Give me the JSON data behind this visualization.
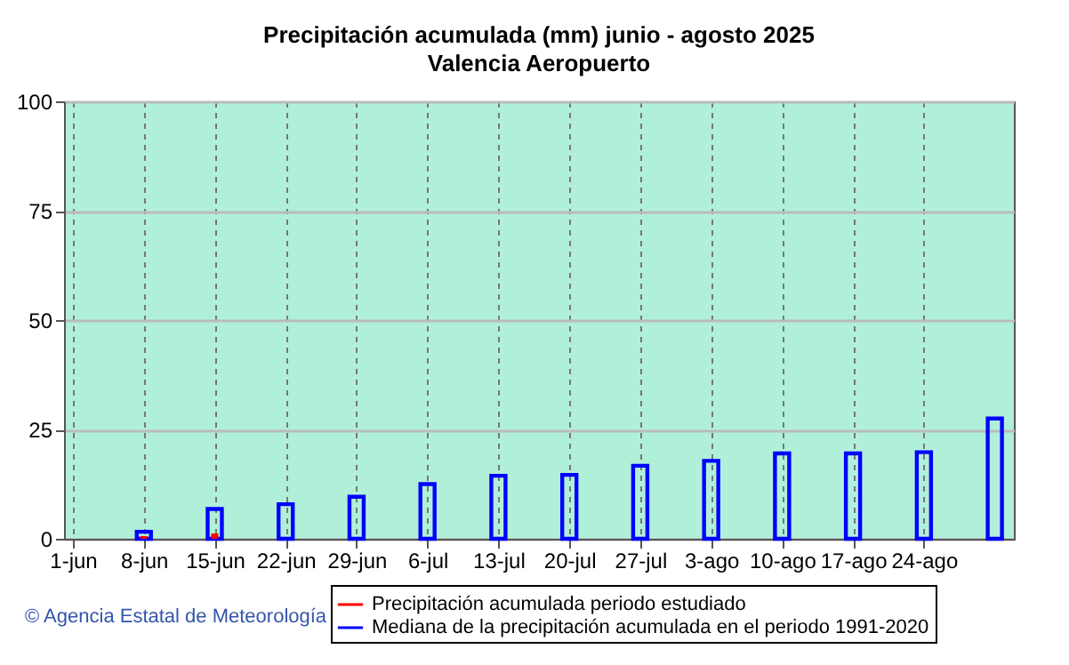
{
  "chart_data": {
    "type": "bar",
    "title": "Precipitación acumulada (mm) junio - agosto 2025",
    "subtitle": "Valencia Aeropuerto",
    "x": [
      "2025-06-08",
      "2025-06-15",
      "2025-06-22",
      "2025-06-29",
      "2025-07-06",
      "2025-07-13",
      "2025-07-20",
      "2025-07-27",
      "2025-08-03",
      "2025-08-10",
      "2025-08-17",
      "2025-08-24",
      "2025-08-31"
    ],
    "series": [
      {
        "name": "Precipitación acumulada periodo estudiado",
        "color": "#ff0000",
        "values": [
          0.6,
          1.2,
          null,
          null,
          null,
          null,
          null,
          null,
          null,
          null,
          null,
          null,
          null
        ]
      },
      {
        "name": "Mediana de la precipitación acumulada en el periodo 1991-2020",
        "color": "#0000ff",
        "values": [
          1.6,
          6.8,
          7.9,
          9.6,
          12.5,
          14.4,
          14.6,
          16.7,
          17.8,
          19.5,
          19.5,
          19.8,
          27.5
        ]
      }
    ],
    "xlim": [
      "2025-06-01",
      "2025-09-01"
    ],
    "xticks": [
      {
        "value": "2025-06-01",
        "label": "1-jun"
      },
      {
        "value": "2025-06-08",
        "label": "8-jun"
      },
      {
        "value": "2025-06-15",
        "label": "15-jun"
      },
      {
        "value": "2025-06-22",
        "label": "22-jun"
      },
      {
        "value": "2025-06-29",
        "label": "29-jun"
      },
      {
        "value": "2025-07-06",
        "label": "6-jul"
      },
      {
        "value": "2025-07-13",
        "label": "13-jul"
      },
      {
        "value": "2025-07-20",
        "label": "20-jul"
      },
      {
        "value": "2025-07-27",
        "label": "27-jul"
      },
      {
        "value": "2025-08-03",
        "label": "3-ago"
      },
      {
        "value": "2025-08-10",
        "label": "10-ago"
      },
      {
        "value": "2025-08-17",
        "label": "17-ago"
      },
      {
        "value": "2025-08-24",
        "label": "24-ago"
      }
    ],
    "ylim": [
      0,
      100
    ],
    "yticks": [
      0,
      25,
      50,
      75,
      100
    ],
    "grid": true,
    "legend": "bottom right",
    "annotations": [
      "© Agencia Estatal de Meteorología"
    ]
  }
}
